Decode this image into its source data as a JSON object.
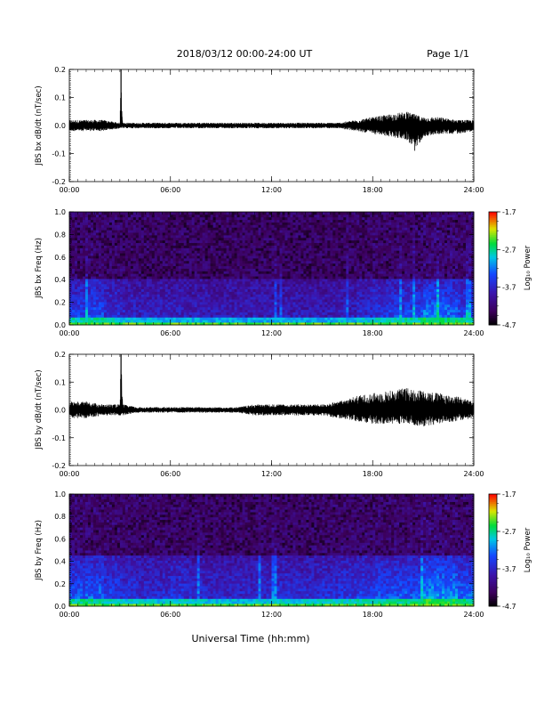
{
  "header": {
    "title": "2018/03/12  00:00-24:00 UT",
    "page": "Page 1/1"
  },
  "footer": {
    "xlabel": "Universal Time (hh:mm)"
  },
  "colorbar": {
    "label": "Log₁₀ Power",
    "ticks": [
      "-1.7",
      "-2.7",
      "-3.7",
      "-4.7"
    ],
    "values": [
      -1.7,
      -2.7,
      -3.7,
      -4.7
    ],
    "range": [
      -4.7,
      -1.7
    ],
    "colormap": "rainbow (black-purple-blue-cyan-green-yellow-red)"
  },
  "chart_data": [
    {
      "type": "line",
      "ylabel": "JBS bx dB/dt (nT/sec)",
      "xlim": [
        "00:00",
        "24:00"
      ],
      "ylim": [
        -0.2,
        0.2
      ],
      "xticks": [
        "00:00",
        "06:00",
        "12:00",
        "18:00",
        "24:00"
      ],
      "yticks": [
        "0.2",
        "0.1",
        "0.0",
        "-0.1",
        "-0.2"
      ],
      "series": [
        {
          "color": "#000000",
          "x": [
            "00:00",
            "01:00",
            "02:00",
            "03:00",
            "03:04",
            "03:10",
            "04:00",
            "05:00",
            "06:00",
            "07:00",
            "08:00",
            "09:00",
            "10:00",
            "11:00",
            "12:00",
            "13:00",
            "14:00",
            "15:00",
            "16:00",
            "17:00",
            "18:00",
            "19:00",
            "20:00",
            "20:30",
            "21:00",
            "22:00",
            "23:00",
            "24:00"
          ],
          "y_min": [
            -0.02,
            -0.02,
            -0.02,
            -0.01,
            -0.01,
            -0.01,
            -0.01,
            -0.01,
            -0.01,
            -0.01,
            -0.01,
            -0.01,
            -0.01,
            -0.01,
            -0.01,
            -0.01,
            -0.01,
            -0.01,
            -0.01,
            -0.02,
            -0.03,
            -0.04,
            -0.05,
            -0.09,
            -0.04,
            -0.03,
            -0.03,
            -0.02
          ],
          "y_max": [
            0.02,
            0.02,
            0.02,
            0.01,
            0.2,
            0.01,
            0.01,
            0.01,
            0.01,
            0.01,
            0.01,
            0.01,
            0.01,
            0.01,
            0.01,
            0.01,
            0.01,
            0.01,
            0.01,
            0.02,
            0.03,
            0.04,
            0.05,
            0.04,
            0.03,
            0.03,
            0.02,
            0.02
          ]
        }
      ]
    },
    {
      "type": "heatmap",
      "ylabel": "JBS bx Freq (Hz)",
      "xlim": [
        "00:00",
        "24:00"
      ],
      "ylim": [
        0.0,
        1.0
      ],
      "xticks": [
        "00:00",
        "06:00",
        "12:00",
        "18:00",
        "24:00"
      ],
      "yticks": [
        "1.0",
        "0.8",
        "0.6",
        "0.4",
        "0.2",
        "0.0"
      ],
      "zlim": [
        -4.7,
        -1.7
      ],
      "hour_activity": [
        0.55,
        0.6,
        0.45,
        0.35,
        0.3,
        0.3,
        0.3,
        0.28,
        0.25,
        0.25,
        0.25,
        0.25,
        0.25,
        0.25,
        0.25,
        0.25,
        0.3,
        0.4,
        0.5,
        0.55,
        0.6,
        0.8,
        0.75,
        0.6
      ],
      "low_freq_band_top_hz": 0.4,
      "features": [
        "intense 0.0-0.02 Hz band all day",
        "enhanced 0.1-0.4 Hz power 00:00-02:00 and 18:00-24:00",
        "strong burst near 21:00-23:00 up to 0.4 Hz"
      ]
    },
    {
      "type": "line",
      "ylabel": "JBS by dB/dt (nT/sec)",
      "xlim": [
        "00:00",
        "24:00"
      ],
      "ylim": [
        -0.2,
        0.2
      ],
      "xticks": [
        "00:00",
        "06:00",
        "12:00",
        "18:00",
        "24:00"
      ],
      "yticks": [
        "0.2",
        "0.1",
        "0.0",
        "-0.1",
        "-0.2"
      ],
      "series": [
        {
          "color": "#000000",
          "x": [
            "00:00",
            "01:00",
            "02:00",
            "03:00",
            "03:04",
            "03:10",
            "04:00",
            "05:00",
            "06:00",
            "07:00",
            "08:00",
            "09:00",
            "10:00",
            "11:00",
            "12:00",
            "13:00",
            "14:00",
            "15:00",
            "16:00",
            "17:00",
            "18:00",
            "19:00",
            "20:00",
            "21:00",
            "22:00",
            "23:00",
            "24:00"
          ],
          "y_min": [
            -0.03,
            -0.03,
            -0.02,
            -0.02,
            -0.02,
            -0.02,
            -0.01,
            -0.01,
            -0.01,
            -0.01,
            -0.01,
            -0.01,
            -0.01,
            -0.02,
            -0.02,
            -0.02,
            -0.02,
            -0.02,
            -0.03,
            -0.04,
            -0.05,
            -0.05,
            -0.05,
            -0.06,
            -0.05,
            -0.04,
            -0.03
          ],
          "y_max": [
            0.03,
            0.03,
            0.02,
            0.02,
            0.2,
            0.02,
            0.01,
            0.01,
            0.01,
            0.01,
            0.01,
            0.01,
            0.01,
            0.02,
            0.02,
            0.02,
            0.02,
            0.02,
            0.03,
            0.05,
            0.06,
            0.07,
            0.08,
            0.07,
            0.06,
            0.05,
            0.03
          ]
        }
      ]
    },
    {
      "type": "heatmap",
      "ylabel": "JBS by Freq (Hz)",
      "xlim": [
        "00:00",
        "24:00"
      ],
      "ylim": [
        0.0,
        1.0
      ],
      "xticks": [
        "00:00",
        "06:00",
        "12:00",
        "18:00",
        "24:00"
      ],
      "yticks": [
        "1.0",
        "0.8",
        "0.6",
        "0.4",
        "0.2",
        "0.0"
      ],
      "zlim": [
        -4.7,
        -1.7
      ],
      "hour_activity": [
        0.65,
        0.7,
        0.55,
        0.45,
        0.4,
        0.4,
        0.45,
        0.4,
        0.35,
        0.35,
        0.35,
        0.4,
        0.45,
        0.4,
        0.4,
        0.45,
        0.5,
        0.55,
        0.6,
        0.65,
        0.65,
        0.9,
        0.85,
        0.7
      ],
      "low_freq_band_top_hz": 0.45,
      "features": [
        "intense 0.0-0.05 Hz band all day",
        "broad 0.1-0.4 Hz power 00:00-02:00",
        "strong 0.1-0.4 Hz burst near 21:00-23:00"
      ]
    }
  ]
}
